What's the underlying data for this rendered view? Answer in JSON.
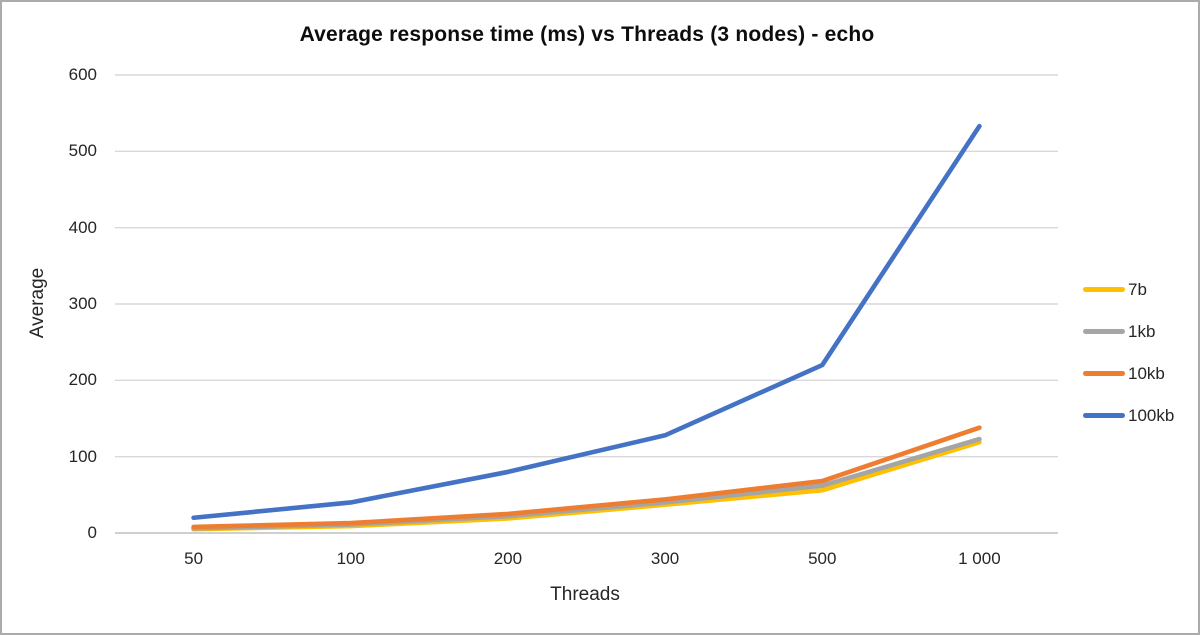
{
  "chart_data": {
    "type": "line",
    "title": "Average response time (ms) vs Threads (3 nodes) - echo",
    "xlabel": "Threads",
    "ylabel": "Average",
    "categories": [
      "50",
      "100",
      "200",
      "300",
      "500",
      "1 000"
    ],
    "x_values_numeric": [
      50,
      100,
      200,
      300,
      500,
      1000
    ],
    "y_ticks": [
      0,
      100,
      200,
      300,
      400,
      500,
      600
    ],
    "ylim": [
      0,
      600
    ],
    "grid": "horizontal-only",
    "legend_position": "right",
    "colors": {
      "gridline": "#d9d9d9",
      "axis_line": "#bfbfbf",
      "text": "#262626"
    },
    "series": [
      {
        "name": "7b",
        "color": "#FFC000",
        "values": [
          5,
          9,
          19,
          37,
          56,
          119
        ]
      },
      {
        "name": "1kb",
        "color": "#A5A5A5",
        "values": [
          6,
          11,
          22,
          40,
          62,
          123
        ]
      },
      {
        "name": "10kb",
        "color": "#ED7D31",
        "values": [
          8,
          13,
          25,
          44,
          68,
          138
        ]
      },
      {
        "name": "100kb",
        "color": "#4472C4",
        "values": [
          20,
          40,
          80,
          128,
          220,
          533
        ]
      }
    ]
  }
}
